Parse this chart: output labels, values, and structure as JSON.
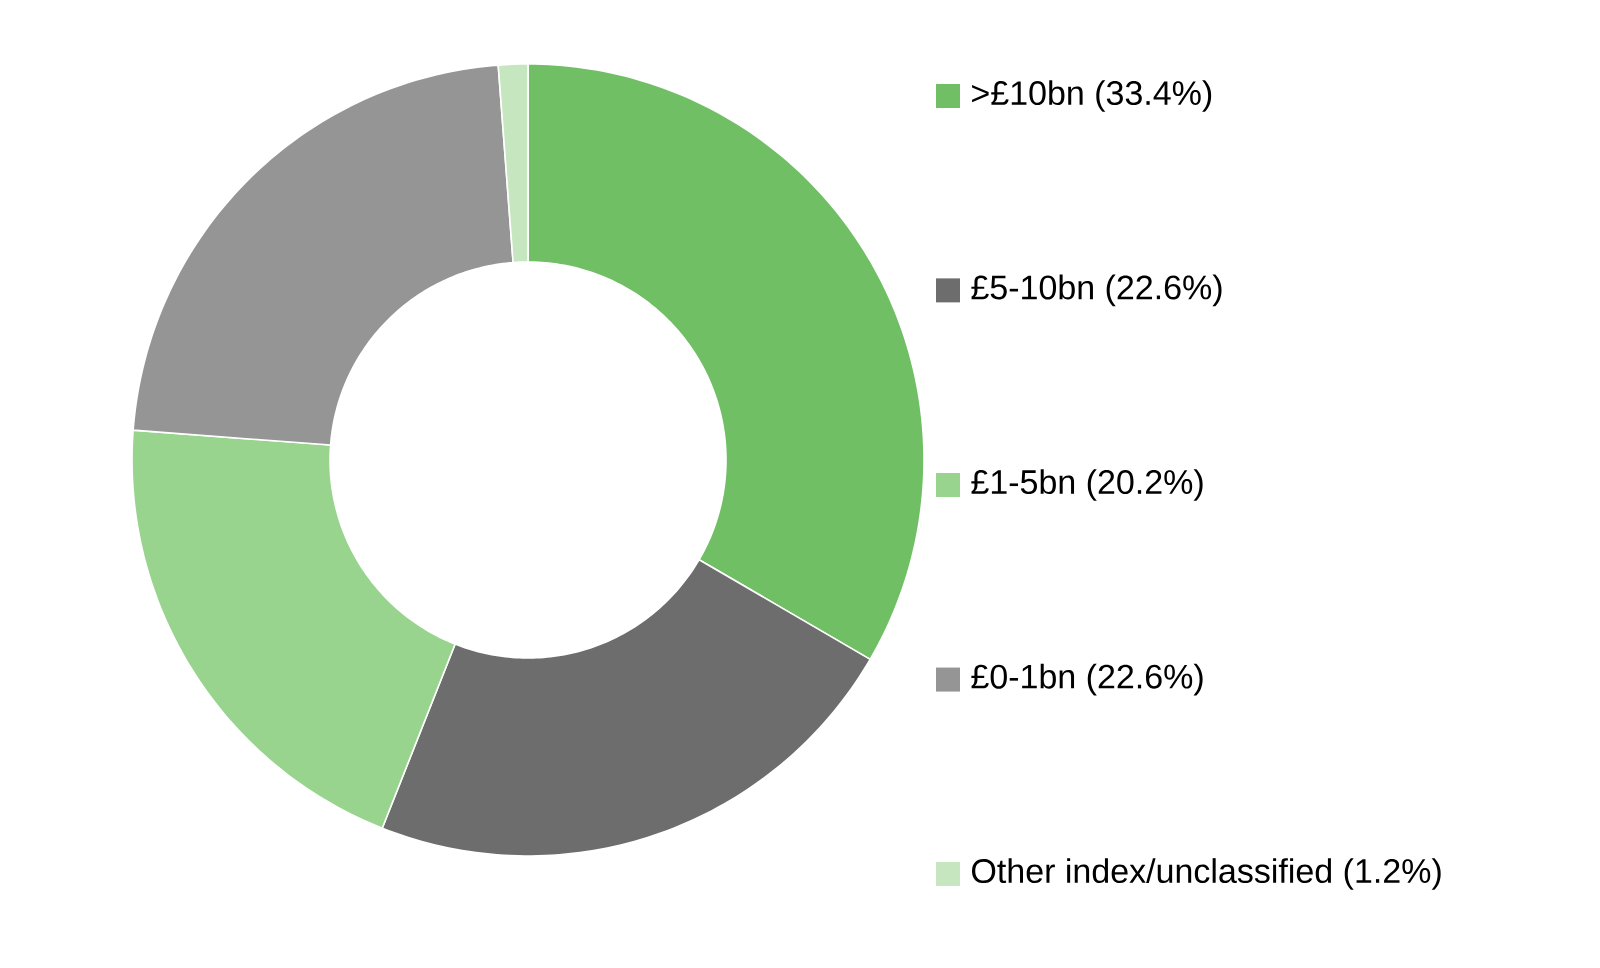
{
  "chart_data": {
    "type": "donut",
    "categories": [
      ">£10bn (33.4%)",
      "£5-10bn (22.6%)",
      "£1-5bn (20.2%)",
      "£0-1bn (22.6%)",
      "Other index/unclassified (1.2%)"
    ],
    "values": [
      33.4,
      22.6,
      20.2,
      22.6,
      1.2
    ],
    "colors": [
      "#70bf65",
      "#6d6d6d",
      "#98d48e",
      "#959595",
      "#c6e6c0"
    ],
    "legend": "right"
  }
}
